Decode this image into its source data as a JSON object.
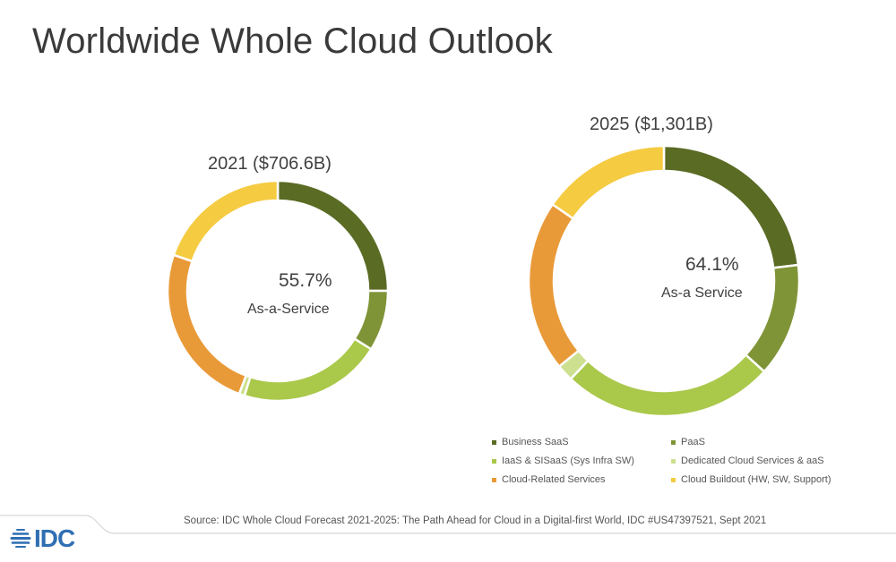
{
  "title": "Worldwide Whole Cloud Outlook",
  "source": "Source: IDC Whole Cloud Forecast 2021-2025: The Path Ahead for Cloud in a Digital-first World, IDC #US47397521, Sept 2021",
  "logo": {
    "text": "IDC",
    "icon": "idc-globe-icon",
    "color": "#2f6fb3"
  },
  "chart_data": [
    {
      "type": "pie",
      "variant": "donut",
      "title": "2021 ($706.6B)",
      "center_value": "55.7%",
      "center_label": "As-a-Service",
      "categories": [
        "Business SaaS",
        "PaaS",
        "IaaS & SISaaS (Sys Infra SW)",
        "Dedicated Cloud Services & aaS",
        "Cloud-Related Services",
        "Cloud Buildout (HW, SW, Support)"
      ],
      "values": [
        25.0,
        8.9,
        21.0,
        0.8,
        24.6,
        19.7
      ],
      "unit": "% share (estimated)"
    },
    {
      "type": "pie",
      "variant": "donut",
      "title": "2025 ($1,301B)",
      "center_value": "64.1%",
      "center_label": "As-a Service",
      "categories": [
        "Business SaaS",
        "PaaS",
        "IaaS & SISaaS (Sys Infra SW)",
        "Dedicated Cloud Services & aaS",
        "Cloud-Related Services",
        "Cloud Buildout (HW, SW, Support)"
      ],
      "values": [
        23.1,
        13.6,
        25.4,
        2.0,
        20.5,
        15.4
      ],
      "unit": "% share (estimated)"
    }
  ],
  "legend": {
    "position": "bottom-right",
    "items": [
      {
        "label": "Business SaaS",
        "color": "#5a6b24"
      },
      {
        "label": "PaaS",
        "color": "#7f9437"
      },
      {
        "label": "IaaS & SISaaS (Sys Infra SW)",
        "color": "#aac84a"
      },
      {
        "label": "Dedicated Cloud Services & aaS",
        "color": "#cde08f"
      },
      {
        "label": "Cloud-Related Services",
        "color": "#e99a38"
      },
      {
        "label": "Cloud Buildout (HW, SW, Support)",
        "color": "#f5cb42"
      }
    ]
  }
}
